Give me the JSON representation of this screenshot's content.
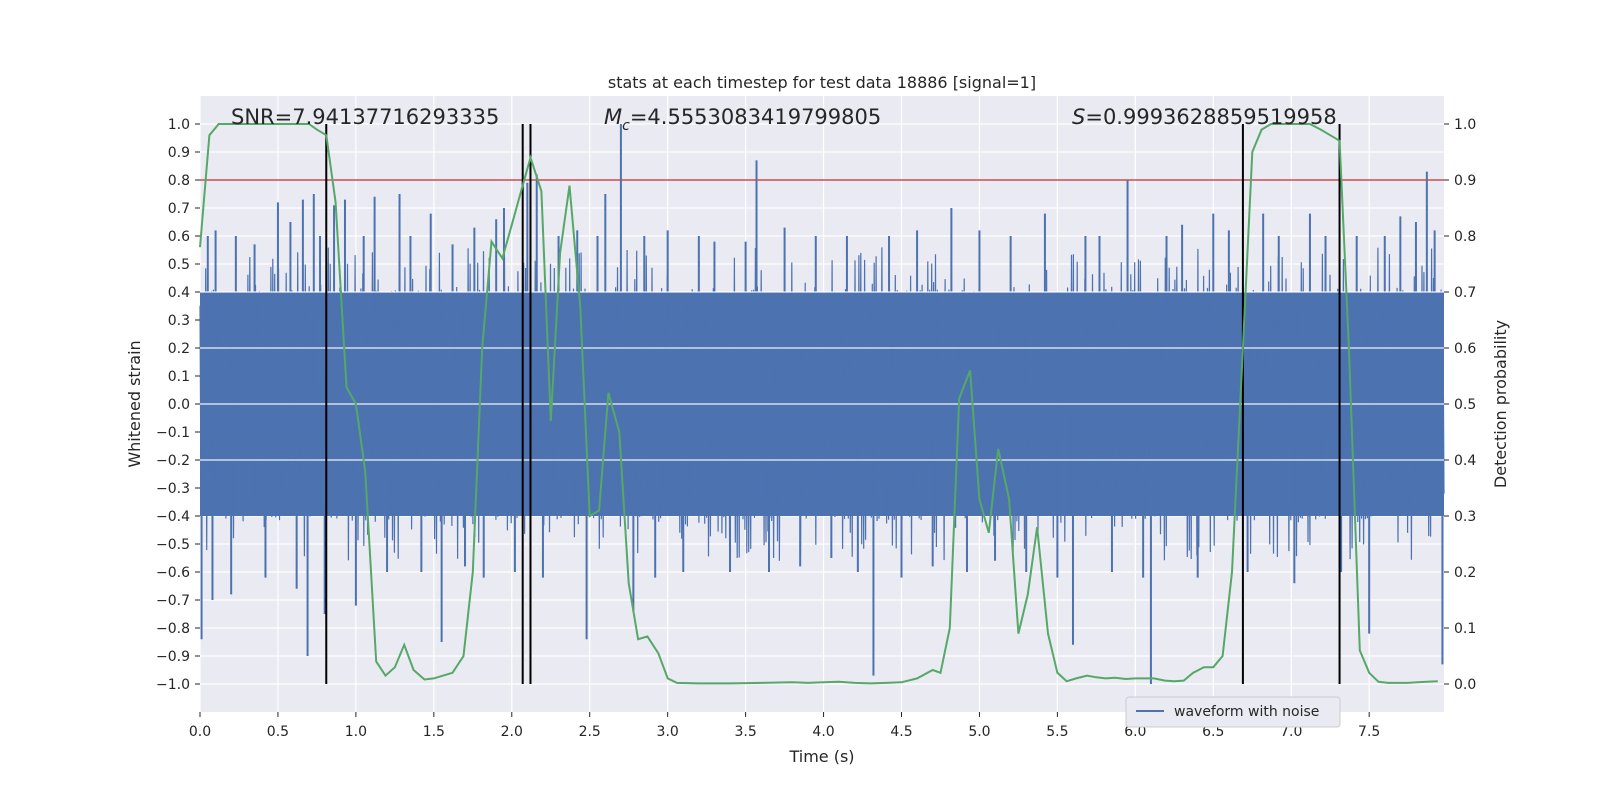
{
  "chart_data": {
    "type": "line",
    "title": "stats at each timestep for test data 18886 [signal=1]",
    "xlabel": "Time (s)",
    "ylabel": "Whitened strain",
    "ylabel_right": "Detection probability",
    "xlim": [
      0.0,
      7.98
    ],
    "ylim": [
      -1.1,
      1.1
    ],
    "ylim_right": [
      -0.05,
      1.05
    ],
    "x_ticks": [
      0.0,
      0.5,
      1.0,
      1.5,
      2.0,
      2.5,
      3.0,
      3.5,
      4.0,
      4.5,
      5.0,
      5.5,
      6.0,
      6.5,
      7.0,
      7.5
    ],
    "x_tick_labels": [
      "0.0",
      "0.5",
      "1.0",
      "1.5",
      "2.0",
      "2.5",
      "3.0",
      "3.5",
      "4.0",
      "4.5",
      "5.0",
      "5.5",
      "6.0",
      "6.5",
      "7.0",
      "7.5"
    ],
    "y_ticks": [
      -1.0,
      -0.9,
      -0.8,
      -0.7,
      -0.6,
      -0.5,
      -0.4,
      -0.3,
      -0.2,
      -0.1,
      0.0,
      0.1,
      0.2,
      0.3,
      0.4,
      0.5,
      0.6,
      0.7,
      0.8,
      0.9,
      1.0
    ],
    "y_tick_labels": [
      "−1.0",
      "−0.9",
      "−0.8",
      "−0.7",
      "−0.6",
      "−0.5",
      "−0.4",
      "−0.3",
      "−0.2",
      "−0.1",
      "0.0",
      "0.1",
      "0.2",
      "0.3",
      "0.4",
      "0.5",
      "0.6",
      "0.7",
      "0.8",
      "0.9",
      "1.0"
    ],
    "y_right_ticks": [
      0.0,
      0.1,
      0.2,
      0.3,
      0.4,
      0.5,
      0.6,
      0.7,
      0.8,
      0.9,
      1.0
    ],
    "y_right_tick_labels": [
      "0.0",
      "0.1",
      "0.2",
      "0.3",
      "0.4",
      "0.5",
      "0.6",
      "0.7",
      "0.8",
      "0.9",
      "1.0"
    ],
    "annotations": {
      "snr_text": "SNR=7.94137716293335",
      "mc_symbol": "M",
      "mc_subscript": "c",
      "mc_value": "=4.5553083419799805",
      "s_symbol": "S",
      "s_value": "=0.9993628859519958"
    },
    "threshold": {
      "value_right": 0.9,
      "color": "#c44e52"
    },
    "vertical_lines_x": [
      0.81,
      2.07,
      2.12,
      6.69,
      7.31
    ],
    "vertical_line_range_right": [
      0.0,
      1.0
    ],
    "waveform": {
      "name": "waveform with noise",
      "color": "#4c72b0",
      "typical_envelope": 0.4,
      "spikes": [
        [
          0.01,
          -0.84
        ],
        [
          0.05,
          0.6
        ],
        [
          0.08,
          -0.7
        ],
        [
          0.1,
          0.62
        ],
        [
          0.2,
          -0.68
        ],
        [
          0.23,
          0.6
        ],
        [
          0.35,
          0.57
        ],
        [
          0.42,
          -0.62
        ],
        [
          0.5,
          0.72
        ],
        [
          0.58,
          0.65
        ],
        [
          0.62,
          -0.66
        ],
        [
          0.66,
          0.73
        ],
        [
          0.69,
          -0.9
        ],
        [
          0.73,
          0.75
        ],
        [
          0.77,
          0.6
        ],
        [
          0.8,
          -0.75
        ],
        [
          0.86,
          0.71
        ],
        [
          0.93,
          0.73
        ],
        [
          1.0,
          -0.72
        ],
        [
          1.05,
          0.6
        ],
        [
          1.12,
          0.74
        ],
        [
          1.2,
          -0.6
        ],
        [
          1.28,
          0.75
        ],
        [
          1.35,
          0.6
        ],
        [
          1.42,
          -0.6
        ],
        [
          1.48,
          0.68
        ],
        [
          1.55,
          -0.85
        ],
        [
          1.62,
          0.57
        ],
        [
          1.7,
          -0.58
        ],
        [
          1.76,
          0.63
        ],
        [
          1.82,
          -0.62
        ],
        [
          1.9,
          0.66
        ],
        [
          1.95,
          0.7
        ],
        [
          2.02,
          -0.6
        ],
        [
          2.1,
          0.79
        ],
        [
          2.16,
          0.82
        ],
        [
          2.2,
          -0.62
        ],
        [
          2.3,
          0.6
        ],
        [
          2.42,
          0.62
        ],
        [
          2.48,
          -0.84
        ],
        [
          2.55,
          0.6
        ],
        [
          2.6,
          0.75
        ],
        [
          2.7,
          1.0
        ],
        [
          2.78,
          -0.74
        ],
        [
          2.85,
          0.6
        ],
        [
          2.92,
          -0.62
        ],
        [
          3.0,
          0.62
        ],
        [
          3.1,
          -0.6
        ],
        [
          3.2,
          0.6
        ],
        [
          3.3,
          0.58
        ],
        [
          3.4,
          -0.6
        ],
        [
          3.5,
          0.58
        ],
        [
          3.57,
          0.87
        ],
        [
          3.65,
          -0.6
        ],
        [
          3.75,
          0.63
        ],
        [
          3.85,
          -0.58
        ],
        [
          3.95,
          0.6
        ],
        [
          4.05,
          -0.55
        ],
        [
          4.15,
          0.6
        ],
        [
          4.22,
          -0.6
        ],
        [
          4.32,
          -0.97
        ],
        [
          4.42,
          0.6
        ],
        [
          4.5,
          -0.62
        ],
        [
          4.6,
          0.62
        ],
        [
          4.7,
          -0.58
        ],
        [
          4.82,
          0.7
        ],
        [
          4.92,
          -0.6
        ],
        [
          5.0,
          0.62
        ],
        [
          5.1,
          -0.56
        ],
        [
          5.2,
          0.6
        ],
        [
          5.3,
          -0.6
        ],
        [
          5.42,
          0.68
        ],
        [
          5.5,
          -0.62
        ],
        [
          5.6,
          -0.86
        ],
        [
          5.68,
          0.6
        ],
        [
          5.77,
          0.6
        ],
        [
          5.85,
          -0.6
        ],
        [
          5.95,
          0.8
        ],
        [
          6.05,
          -0.62
        ],
        [
          6.1,
          -1.0
        ],
        [
          6.2,
          0.6
        ],
        [
          6.3,
          0.64
        ],
        [
          6.4,
          -0.62
        ],
        [
          6.5,
          0.68
        ],
        [
          6.6,
          0.62
        ],
        [
          6.72,
          -0.6
        ],
        [
          6.82,
          0.68
        ],
        [
          6.92,
          0.6
        ],
        [
          7.02,
          -0.64
        ],
        [
          7.12,
          0.68
        ],
        [
          7.22,
          0.6
        ],
        [
          7.32,
          -0.6
        ],
        [
          7.42,
          0.6
        ],
        [
          7.5,
          -0.82
        ],
        [
          7.6,
          0.6
        ],
        [
          7.7,
          0.67
        ],
        [
          7.8,
          0.65
        ],
        [
          7.87,
          0.83
        ],
        [
          7.92,
          0.62
        ],
        [
          7.97,
          -0.93
        ]
      ]
    },
    "probability": {
      "color": "#55a868",
      "x": [
        0.0,
        0.06,
        0.12,
        0.2,
        0.3,
        0.4,
        0.5,
        0.6,
        0.7,
        0.75,
        0.81,
        0.87,
        0.94,
        1.0,
        1.06,
        1.13,
        1.19,
        1.25,
        1.31,
        1.37,
        1.44,
        1.5,
        1.56,
        1.62,
        1.69,
        1.75,
        1.81,
        1.87,
        1.94,
        2.0,
        2.06,
        2.12,
        2.19,
        2.25,
        2.31,
        2.37,
        2.44,
        2.5,
        2.56,
        2.62,
        2.69,
        2.75,
        2.81,
        2.87,
        2.94,
        3.0,
        3.06,
        3.2,
        3.4,
        3.6,
        3.8,
        3.9,
        4.0,
        4.1,
        4.2,
        4.3,
        4.4,
        4.5,
        4.6,
        4.7,
        4.75,
        4.81,
        4.87,
        4.94,
        5.0,
        5.06,
        5.12,
        5.19,
        5.25,
        5.31,
        5.37,
        5.44,
        5.5,
        5.56,
        5.62,
        5.69,
        5.75,
        5.81,
        5.87,
        5.94,
        6.0,
        6.06,
        6.12,
        6.19,
        6.25,
        6.31,
        6.37,
        6.44,
        6.5,
        6.56,
        6.62,
        6.69,
        6.75,
        6.81,
        6.87,
        6.94,
        7.0,
        7.06,
        7.12,
        7.19,
        7.25,
        7.31,
        7.37,
        7.44,
        7.5,
        7.56,
        7.62,
        7.69,
        7.75,
        7.81,
        7.87,
        7.94
      ],
      "y": [
        0.78,
        0.98,
        1.0,
        1.0,
        1.0,
        1.0,
        1.0,
        1.0,
        1.0,
        0.99,
        0.98,
        0.86,
        0.53,
        0.5,
        0.38,
        0.04,
        0.015,
        0.03,
        0.07,
        0.025,
        0.008,
        0.01,
        0.015,
        0.02,
        0.05,
        0.2,
        0.6,
        0.79,
        0.76,
        0.82,
        0.88,
        0.94,
        0.88,
        0.47,
        0.77,
        0.89,
        0.67,
        0.3,
        0.31,
        0.52,
        0.45,
        0.18,
        0.08,
        0.085,
        0.055,
        0.01,
        0.002,
        0.001,
        0.001,
        0.002,
        0.003,
        0.002,
        0.003,
        0.004,
        0.002,
        0.001,
        0.002,
        0.003,
        0.01,
        0.025,
        0.02,
        0.1,
        0.51,
        0.56,
        0.33,
        0.27,
        0.42,
        0.33,
        0.09,
        0.16,
        0.28,
        0.09,
        0.02,
        0.005,
        0.01,
        0.015,
        0.012,
        0.01,
        0.011,
        0.009,
        0.01,
        0.01,
        0.01,
        0.006,
        0.005,
        0.006,
        0.02,
        0.03,
        0.03,
        0.05,
        0.2,
        0.6,
        0.95,
        0.99,
        1.0,
        1.0,
        1.0,
        1.0,
        1.0,
        0.99,
        0.98,
        0.97,
        0.6,
        0.06,
        0.02,
        0.004,
        0.002,
        0.002,
        0.002,
        0.003,
        0.004,
        0.005
      ]
    },
    "legend": {
      "entries": [
        "waveform with noise"
      ],
      "placement": "bottom-right"
    },
    "grid": true,
    "colors": {
      "background": "#eaeaf2",
      "grid": "#ffffff",
      "vline": "#000000"
    }
  }
}
